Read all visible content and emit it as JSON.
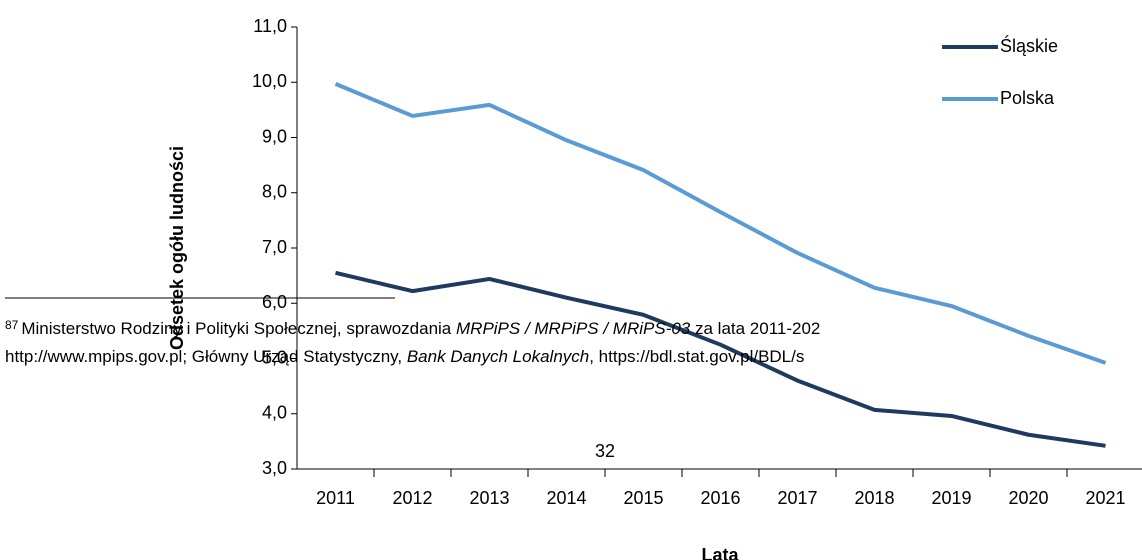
{
  "chart_data": {
    "type": "line",
    "y_axis_label": "Odsetek ogółu ludności",
    "x_axis_label": "Lata",
    "categories": [
      "2011",
      "2012",
      "2013",
      "2014",
      "2015",
      "2016",
      "2017",
      "2018",
      "2019",
      "2020",
      "2021"
    ],
    "series": [
      {
        "name": "Śląskie",
        "color": "#1f3a5f",
        "values": [
          6.55,
          6.22,
          6.44,
          6.1,
          5.79,
          5.25,
          4.6,
          4.07,
          3.96,
          3.62,
          3.42
        ]
      },
      {
        "name": "Polska",
        "color": "#5b9bd5",
        "values": [
          9.97,
          9.39,
          9.59,
          8.95,
          8.41,
          7.65,
          6.91,
          6.28,
          5.95,
          5.41,
          4.92
        ]
      }
    ],
    "ylim": [
      3,
      11
    ],
    "yticks": [
      {
        "value": 3,
        "label": "3,0"
      },
      {
        "value": 4,
        "label": "4,0"
      },
      {
        "value": 5,
        "label": "5,0"
      },
      {
        "value": 6,
        "label": "6,0"
      },
      {
        "value": 7,
        "label": "7,0"
      },
      {
        "value": 8,
        "label": "8,0"
      },
      {
        "value": 9,
        "label": "9,0"
      },
      {
        "value": 10,
        "label": "10,0"
      },
      {
        "value": 11,
        "label": "11,0"
      }
    ],
    "grid": false,
    "legend": "top-right"
  },
  "footnote": {
    "number": "87",
    "line1": [
      "Ministerstwo Rodziny i Polityki Społecznej, sprawozdania ",
      "MRPiPS / MRPiPS / MRiPS-03",
      " za lata 2011-202"
    ],
    "line2": [
      "http://www.mpips.gov.pl; Główny Urząd Statystyczny, ",
      "Bank Danych Lokalnych",
      ", https://bdl.stat.gov.pl/BDL/s"
    ]
  },
  "page_number": "32"
}
